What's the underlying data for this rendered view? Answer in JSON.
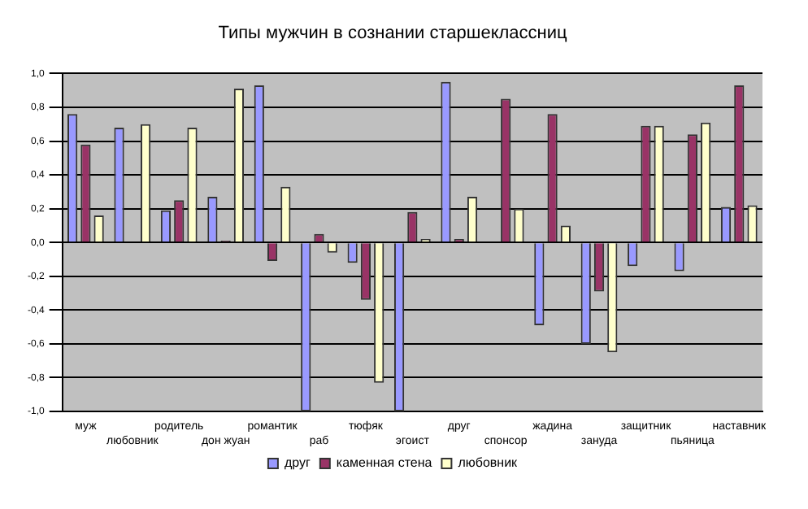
{
  "chart_data": {
    "type": "bar",
    "title": "Типы мужчин в сознании старшеклассниц",
    "categories": [
      "муж",
      "любовник",
      "родитель",
      "дон жуан",
      "романтик",
      "раб",
      "тюфяк",
      "эгоист",
      "друг",
      "спонсор",
      "жадина",
      "зануда",
      "защитник",
      "пьяница",
      "наставник"
    ],
    "series": [
      {
        "name": "друг",
        "color": "#9999ff",
        "values": [
          0.76,
          0.68,
          0.19,
          0.27,
          0.93,
          -1.0,
          -0.12,
          -1.0,
          0.95,
          0.0,
          -0.49,
          -0.6,
          -0.14,
          -0.17,
          0.21
        ]
      },
      {
        "name": "каменная стена",
        "color": "#993366",
        "values": [
          0.58,
          0.0,
          0.25,
          0.01,
          -0.11,
          0.05,
          -0.34,
          0.18,
          0.02,
          0.85,
          0.76,
          -0.29,
          0.69,
          0.64,
          0.93
        ]
      },
      {
        "name": "любовник",
        "color": "#ffffcc",
        "values": [
          0.16,
          0.7,
          0.68,
          0.91,
          0.33,
          -0.06,
          -0.83,
          0.02,
          0.27,
          0.2,
          0.1,
          -0.65,
          0.69,
          0.71,
          0.22
        ]
      }
    ],
    "ylim": [
      -1,
      1
    ],
    "yticks": [
      {
        "value": -1,
        "label": "-1,0"
      },
      {
        "value": -0.8,
        "label": "-0,8"
      },
      {
        "value": -0.6,
        "label": "-0,6"
      },
      {
        "value": -0.4,
        "label": "-0,4"
      },
      {
        "value": -0.2,
        "label": "-0,2"
      },
      {
        "value": 0,
        "label": "0,0"
      },
      {
        "value": 0.2,
        "label": "0,2"
      },
      {
        "value": 0.4,
        "label": "0,4"
      },
      {
        "value": 0.6,
        "label": "0,6"
      },
      {
        "value": 0.8,
        "label": "0,8"
      },
      {
        "value": 1,
        "label": "1,0"
      }
    ],
    "grid": "y",
    "legend": "bottom"
  }
}
